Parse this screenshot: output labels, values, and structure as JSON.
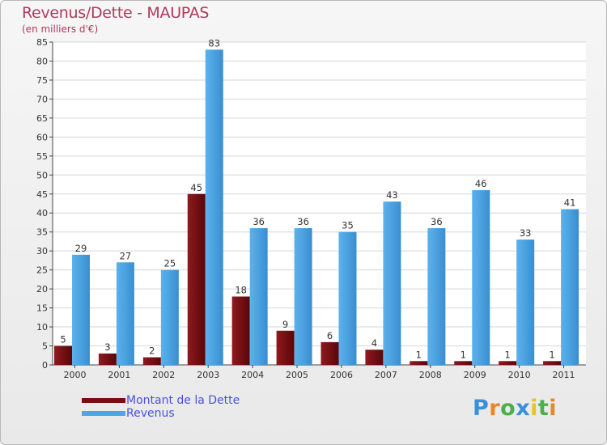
{
  "chart_data": {
    "type": "bar",
    "title": "Revenus/Dette - MAUPAS",
    "subtitle": "(en milliers d'€)",
    "xlabel": "",
    "ylabel": "",
    "ylim": [
      0,
      85
    ],
    "ytick_step": 5,
    "grid": true,
    "legend_position": "bottom-left",
    "categories": [
      "2000",
      "2001",
      "2002",
      "2003",
      "2004",
      "2005",
      "2006",
      "2007",
      "2008",
      "2009",
      "2010",
      "2011"
    ],
    "series": [
      {
        "name": "Montant de la Dette",
        "color": "#7a0d12",
        "values": [
          5,
          3,
          2,
          45,
          18,
          9,
          6,
          4,
          1,
          1,
          1,
          1
        ]
      },
      {
        "name": "Revenus",
        "color": "#4ea6e4",
        "values": [
          29,
          27,
          25,
          83,
          36,
          36,
          35,
          43,
          36,
          46,
          33,
          41
        ]
      }
    ]
  },
  "colors": {
    "title": "#b03a5b",
    "legend_text": "#4a52d8",
    "grid": "#d6d6d6",
    "axis": "#444444"
  },
  "logo": {
    "letters": [
      "P",
      "r",
      "o",
      "x",
      "i",
      "t",
      "i"
    ],
    "colors": [
      "#3b8fd9",
      "#e8862a",
      "#4bb04b",
      "#3b8fd9",
      "#e8c22a",
      "#4bb04b",
      "#e8862a"
    ]
  }
}
